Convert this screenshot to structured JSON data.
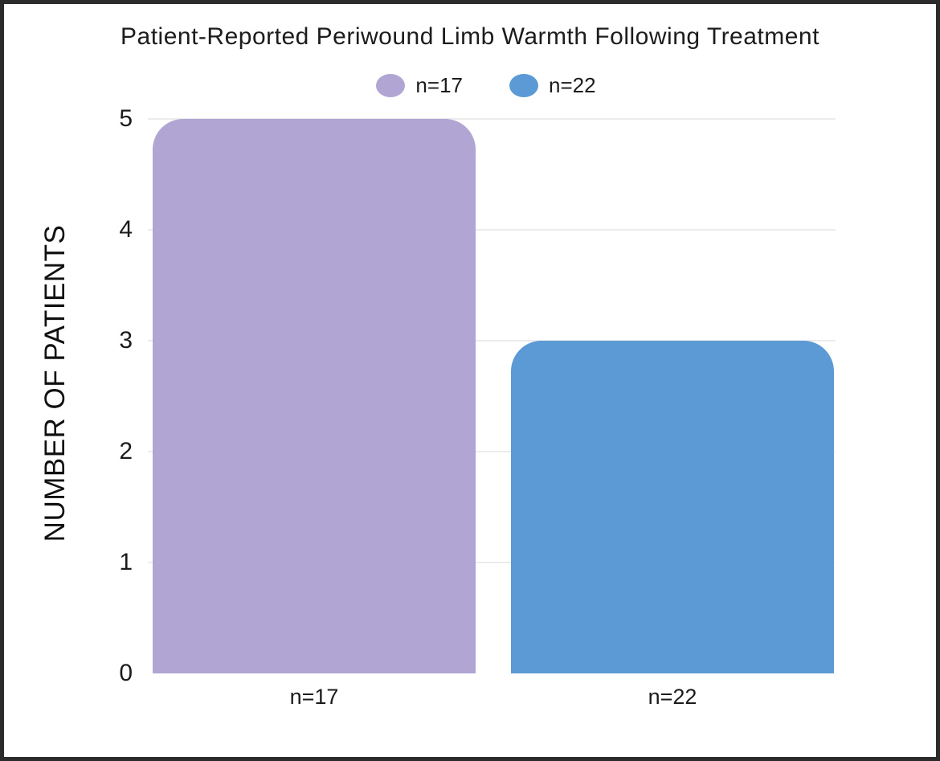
{
  "frame": {
    "background_color": "#ffffff",
    "border_color": "#2b2b2b"
  },
  "chart_data": {
    "type": "bar",
    "title": "Patient-Reported Periwound Limb Warmth Following Treatment",
    "categories": [
      "n=17",
      "n=22"
    ],
    "values": [
      5,
      3
    ],
    "bar_colors": [
      "#b0a5d3",
      "#5b9ad5"
    ],
    "xlabel": "",
    "ylabel": "NUMBER OF PATIENTS",
    "ylim": [
      0,
      5
    ],
    "yticks": [
      0,
      1,
      2,
      3,
      4,
      5
    ],
    "grid": "horizontal",
    "gridline_color": "#ececec",
    "legend": {
      "position": "top-center",
      "entries": [
        {
          "label": "n=17",
          "color": "#b0a5d3"
        },
        {
          "label": "n=22",
          "color": "#5b9ad5"
        }
      ]
    }
  }
}
